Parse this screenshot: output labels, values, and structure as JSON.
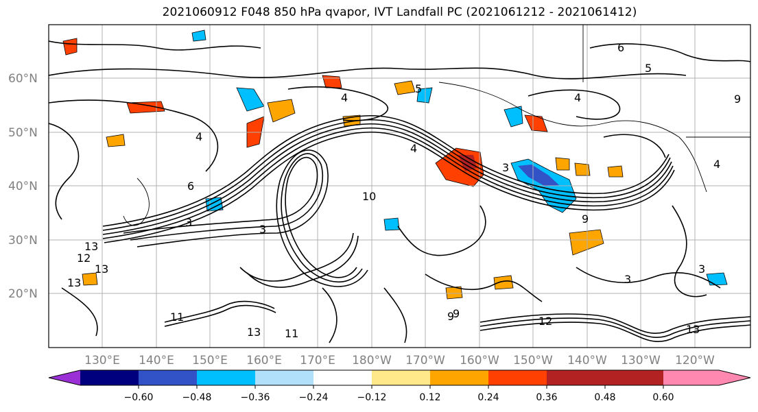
{
  "title": "2021060912 F048 850 hPa qvapor, IVT Landfall PC (2021061212 - 2021061412)",
  "map": {
    "lat_labels": [
      "60°N",
      "50°N",
      "40°N",
      "30°N",
      "20°N"
    ],
    "lon_labels": [
      "130°E",
      "140°E",
      "150°E",
      "160°E",
      "170°E",
      "180°W",
      "170°W",
      "160°W",
      "150°W",
      "140°W",
      "130°W",
      "120°W"
    ],
    "contour_labels": [
      "4",
      "4",
      "4",
      "3",
      "5",
      "6",
      "3",
      "3",
      "10",
      "13",
      "13",
      "9",
      "9",
      "12",
      "13",
      "11",
      "13",
      "5",
      "3",
      "3",
      "9",
      "12",
      "13",
      "11",
      "4",
      "9",
      "6",
      "4"
    ]
  },
  "colorbar": {
    "colors": [
      "#9b30d6",
      "#00007f",
      "#3253c8",
      "#00bfff",
      "#b0e0fa",
      "#ffffff",
      "#ffe88a",
      "#ffa500",
      "#ff4000",
      "#b22222",
      "#ff88b0"
    ],
    "tick_labels": [
      "−0.60",
      "−0.48",
      "−0.36",
      "−0.24",
      "−0.12",
      "0.12",
      "0.24",
      "0.36",
      "0.48",
      "0.60"
    ]
  }
}
